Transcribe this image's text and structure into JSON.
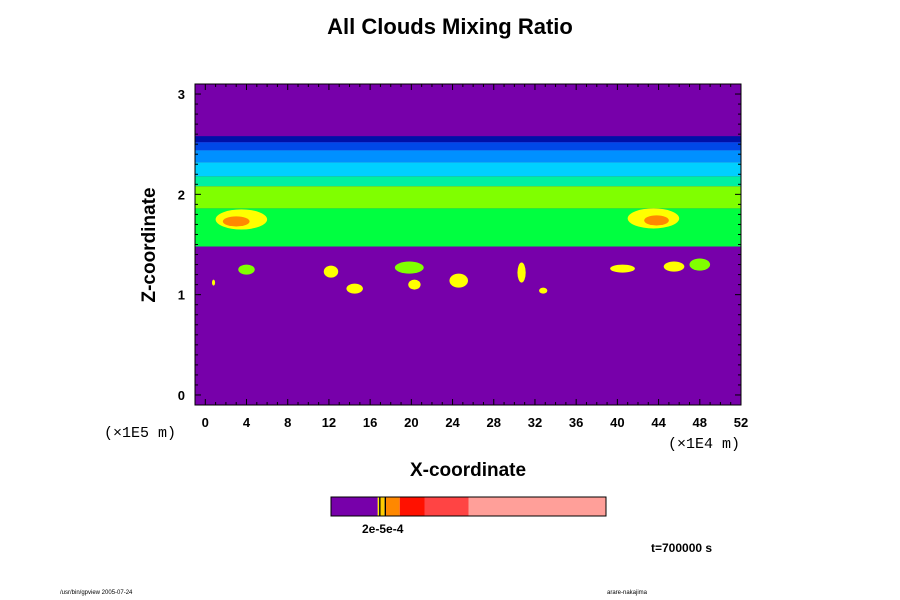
{
  "chart_data": {
    "type": "heatmap",
    "title": "All Clouds Mixing Ratio",
    "xlabel": "X-coordinate",
    "ylabel": "Z-coordinate",
    "x_scale_note": "(×1E4 m)",
    "y_scale_note": "(×1E5 m)",
    "xlim": [
      -1,
      52
    ],
    "ylim": [
      -0.1,
      3.1
    ],
    "x_ticks": [
      "0",
      "4",
      "8",
      "12",
      "16",
      "20",
      "24",
      "28",
      "32",
      "36",
      "40",
      "44",
      "48",
      "52"
    ],
    "x_tick_values": [
      0,
      4,
      8,
      12,
      16,
      20,
      24,
      28,
      32,
      36,
      40,
      44,
      48,
      52
    ],
    "y_ticks": [
      "0",
      "1",
      "2",
      "3"
    ],
    "y_tick_values": [
      0,
      1,
      2,
      3
    ],
    "background_color": "#7700aa",
    "bands": [
      {
        "z": [
          2.52,
          2.58
        ],
        "color": "#0010a8"
      },
      {
        "z": [
          2.44,
          2.52
        ],
        "color": "#0048e8"
      },
      {
        "z": [
          2.32,
          2.44
        ],
        "color": "#0090ff"
      },
      {
        "z": [
          2.18,
          2.32
        ],
        "color": "#00d0ff"
      },
      {
        "z": [
          2.08,
          2.18
        ],
        "color": "#00f0a0"
      },
      {
        "z": [
          1.86,
          2.08
        ],
        "color": "#80ff00"
      },
      {
        "z": [
          1.48,
          1.86
        ],
        "color": "#00ff40"
      }
    ],
    "cells": [
      {
        "x": 3.5,
        "z": 1.75,
        "rx": 2.5,
        "rz": 0.1,
        "color": "#ffff00"
      },
      {
        "x": 3.0,
        "z": 1.73,
        "rx": 1.3,
        "rz": 0.05,
        "color": "#ff8800"
      },
      {
        "x": 43.5,
        "z": 1.76,
        "rx": 2.5,
        "rz": 0.1,
        "color": "#ffff00"
      },
      {
        "x": 43.8,
        "z": 1.74,
        "rx": 1.2,
        "rz": 0.05,
        "color": "#ff8800"
      },
      {
        "x": 4.0,
        "z": 1.25,
        "rx": 0.8,
        "rz": 0.05,
        "color": "#80ff00"
      },
      {
        "x": 12.2,
        "z": 1.23,
        "rx": 0.7,
        "rz": 0.06,
        "color": "#ffff00"
      },
      {
        "x": 14.5,
        "z": 1.06,
        "rx": 0.8,
        "rz": 0.05,
        "color": "#ffff00"
      },
      {
        "x": 19.8,
        "z": 1.27,
        "rx": 1.4,
        "rz": 0.06,
        "color": "#80ff00"
      },
      {
        "x": 20.3,
        "z": 1.1,
        "rx": 0.6,
        "rz": 0.05,
        "color": "#ffff00"
      },
      {
        "x": 24.6,
        "z": 1.14,
        "rx": 0.9,
        "rz": 0.07,
        "color": "#ffff00"
      },
      {
        "x": 30.7,
        "z": 1.22,
        "rx": 0.4,
        "rz": 0.1,
        "color": "#ffff00"
      },
      {
        "x": 32.8,
        "z": 1.04,
        "rx": 0.4,
        "rz": 0.03,
        "color": "#ffff00"
      },
      {
        "x": 40.5,
        "z": 1.26,
        "rx": 1.2,
        "rz": 0.04,
        "color": "#ffff00"
      },
      {
        "x": 45.5,
        "z": 1.28,
        "rx": 1.0,
        "rz": 0.05,
        "color": "#ffff00"
      },
      {
        "x": 48.0,
        "z": 1.3,
        "rx": 1.0,
        "rz": 0.06,
        "color": "#80ff00"
      },
      {
        "x": 0.8,
        "z": 1.12,
        "rx": 0.15,
        "rz": 0.03,
        "color": "#ffff00"
      }
    ],
    "grid": false
  },
  "colorbar": {
    "label": "2e-5e-4",
    "segments": [
      {
        "fraction": 0.17,
        "color": "#7700aa"
      },
      {
        "fraction": 0.005,
        "color": "#ffee00"
      },
      {
        "fraction": 0.005,
        "color": "#000000"
      },
      {
        "fraction": 0.015,
        "color": "#ffcc00"
      },
      {
        "fraction": 0.005,
        "color": "#000000"
      },
      {
        "fraction": 0.05,
        "color": "#ff8800"
      },
      {
        "fraction": 0.09,
        "color": "#ff1100"
      },
      {
        "fraction": 0.16,
        "color": "#ff4444"
      },
      {
        "fraction": 0.5,
        "color": "#ff9f99"
      }
    ]
  },
  "time_label": "t=700000 s",
  "footer": {
    "left": "/usr/bin/gpview 2005-07-24",
    "right": "arare-nakajima"
  }
}
